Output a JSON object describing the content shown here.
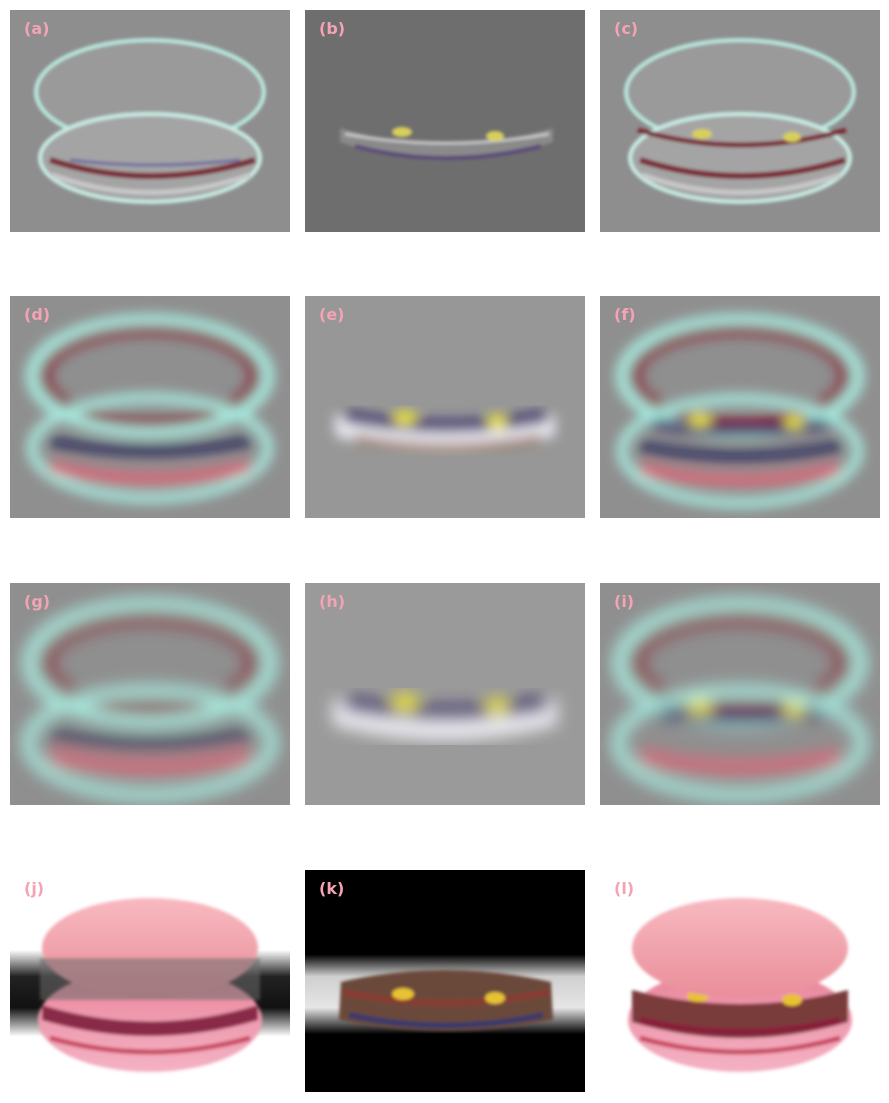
{
  "panels": [
    {
      "label": "(a)"
    },
    {
      "label": "(b)"
    },
    {
      "label": "(c)"
    },
    {
      "label": "(d)"
    },
    {
      "label": "(e)"
    },
    {
      "label": "(f)"
    },
    {
      "label": "(g)"
    },
    {
      "label": "(h)"
    },
    {
      "label": "(i)"
    },
    {
      "label": "(j)"
    },
    {
      "label": "(k)"
    },
    {
      "label": "(l)"
    }
  ],
  "colors": {
    "label": "#f4a3b5",
    "gray_bg": "#8f8f8f",
    "macaron_pink": "#f2a0a8",
    "filling_red": "#7a1c2a",
    "filling_yellow": "#e8d23a",
    "halo_cyan": "#a8ece0"
  }
}
